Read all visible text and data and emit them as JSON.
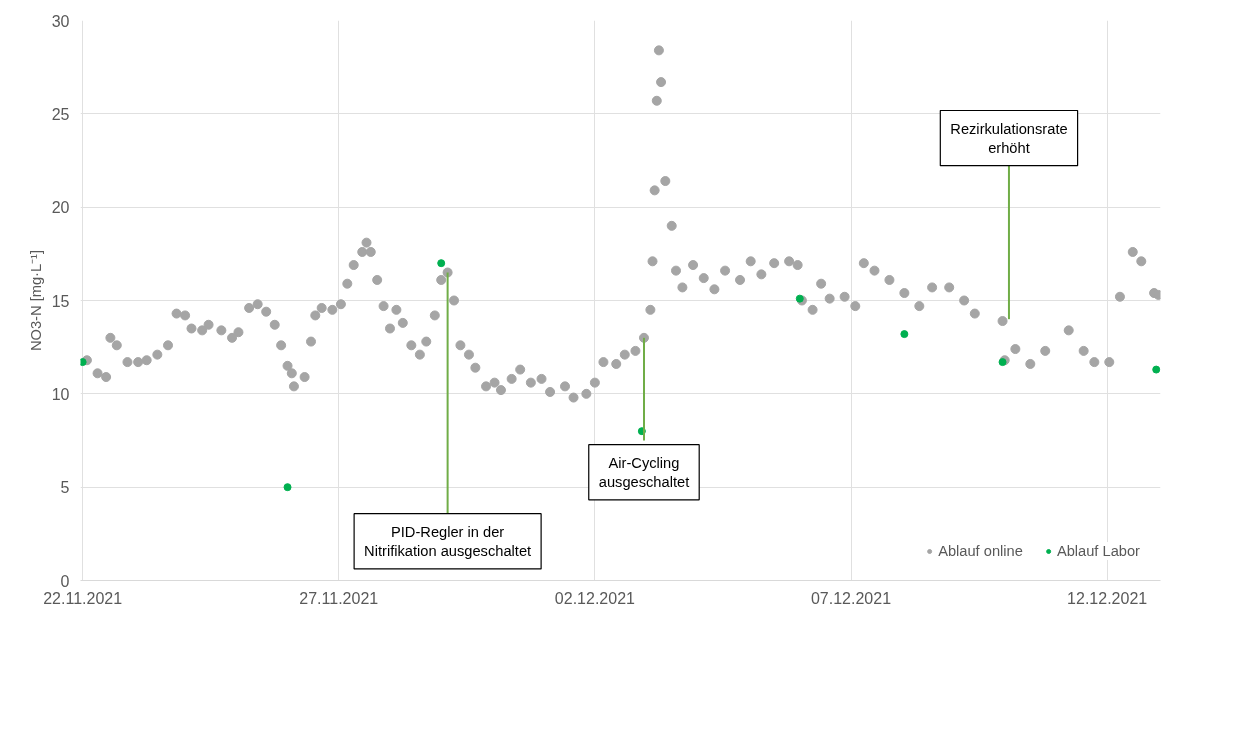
{
  "chart_data": {
    "type": "scatter",
    "ylabel": "NO3-N [mg·L⁻¹]",
    "xlim": [
      "2021-11-21T23:00",
      "2021-12-13T01:00"
    ],
    "xticks": [
      {
        "value": "2021-11-22",
        "label": "22.11.2021"
      },
      {
        "value": "2021-11-27",
        "label": "27.11.2021"
      },
      {
        "value": "2021-12-02",
        "label": "02.12.2021"
      },
      {
        "value": "2021-12-07",
        "label": "07.12.2021"
      },
      {
        "value": "2021-12-12",
        "label": "12.12.2021"
      }
    ],
    "ylim": [
      0,
      30
    ],
    "yticks": [
      0,
      5,
      10,
      15,
      20,
      25,
      30
    ],
    "grid": true,
    "legend": "bottom right",
    "marker": "circle",
    "series": [
      {
        "name": "Ablauf online",
        "color": "#a5a5a5",
        "x": [
          "2021-11-22T02:00",
          "2021-11-22T07:00",
          "2021-11-22T11:00",
          "2021-11-22T13:00",
          "2021-11-22T16:00",
          "2021-11-22T21:00",
          "2021-11-23T02:00",
          "2021-11-23T06:00",
          "2021-11-23T11:00",
          "2021-11-23T16:00",
          "2021-11-23T20:00",
          "2021-11-24T00:00",
          "2021-11-24T03:00",
          "2021-11-24T08:00",
          "2021-11-24T11:00",
          "2021-11-24T17:00",
          "2021-11-24T22:00",
          "2021-11-25T01:00",
          "2021-11-25T06:00",
          "2021-11-25T10:00",
          "2021-11-25T14:00",
          "2021-11-25T18:00",
          "2021-11-25T21:00",
          "2021-11-26T00:00",
          "2021-11-26T02:00",
          "2021-11-26T03:00",
          "2021-11-26T08:00",
          "2021-11-26T11:00",
          "2021-11-26T13:00",
          "2021-11-26T16:00",
          "2021-11-26T21:00",
          "2021-11-27T01:00",
          "2021-11-27T04:00",
          "2021-11-27T07:00",
          "2021-11-27T11:00",
          "2021-11-27T13:00",
          "2021-11-27T15:00",
          "2021-11-27T18:00",
          "2021-11-27T21:00",
          "2021-11-28T00:00",
          "2021-11-28T03:00",
          "2021-11-28T06:00",
          "2021-11-28T10:00",
          "2021-11-28T14:00",
          "2021-11-28T17:00",
          "2021-11-28T21:00",
          "2021-11-29T00:00",
          "2021-11-29T03:00",
          "2021-11-29T06:00",
          "2021-11-29T09:00",
          "2021-11-29T13:00",
          "2021-11-29T16:00",
          "2021-11-29T21:00",
          "2021-11-30T01:00",
          "2021-11-30T04:00",
          "2021-11-30T09:00",
          "2021-11-30T13:00",
          "2021-11-30T18:00",
          "2021-11-30T23:00",
          "2021-12-01T03:00",
          "2021-12-01T10:00",
          "2021-12-01T14:00",
          "2021-12-01T20:00",
          "2021-12-02T00:00",
          "2021-12-02T04:00",
          "2021-12-02T10:00",
          "2021-12-02T14:00",
          "2021-12-02T19:00",
          "2021-12-02T23:00",
          "2021-12-03T02:00",
          "2021-12-03T03:00",
          "2021-12-03T04:00",
          "2021-12-03T05:00",
          "2021-12-03T06:00",
          "2021-12-03T07:00",
          "2021-12-03T09:00",
          "2021-12-03T12:00",
          "2021-12-03T14:00",
          "2021-12-03T17:00",
          "2021-12-03T22:00",
          "2021-12-04T03:00",
          "2021-12-04T08:00",
          "2021-12-04T13:00",
          "2021-12-04T20:00",
          "2021-12-05T01:00",
          "2021-12-05T06:00",
          "2021-12-05T12:00",
          "2021-12-05T19:00",
          "2021-12-05T23:00",
          "2021-12-06T01:00",
          "2021-12-06T06:00",
          "2021-12-06T10:00",
          "2021-12-06T14:00",
          "2021-12-06T21:00",
          "2021-12-07T02:00",
          "2021-12-07T06:00",
          "2021-12-07T11:00",
          "2021-12-07T18:00",
          "2021-12-08T01:00",
          "2021-12-08T08:00",
          "2021-12-08T14:00",
          "2021-12-08T22:00",
          "2021-12-09T05:00",
          "2021-12-09T10:00",
          "2021-12-09T23:00",
          "2021-12-10T00:00",
          "2021-12-10T05:00",
          "2021-12-10T12:00",
          "2021-12-10T19:00",
          "2021-12-11T06:00",
          "2021-12-11T13:00",
          "2021-12-11T18:00",
          "2021-12-12T01:00",
          "2021-12-12T06:00",
          "2021-12-12T12:00",
          "2021-12-12T16:00",
          "2021-12-12T22:00",
          "2021-12-13T00:00"
        ],
        "values": [
          11.8,
          11.1,
          10.9,
          13.0,
          12.6,
          11.7,
          11.7,
          11.8,
          12.1,
          12.6,
          14.3,
          14.2,
          13.5,
          13.4,
          13.7,
          13.4,
          13.0,
          13.3,
          14.6,
          14.8,
          14.4,
          13.7,
          12.6,
          11.5,
          11.1,
          10.4,
          10.9,
          12.8,
          14.2,
          14.6,
          14.5,
          14.8,
          15.9,
          16.9,
          17.6,
          18.1,
          17.6,
          16.1,
          14.7,
          13.5,
          14.5,
          13.8,
          12.6,
          12.1,
          12.8,
          14.2,
          16.1,
          16.5,
          15.0,
          12.6,
          12.1,
          11.4,
          10.4,
          10.6,
          10.2,
          10.8,
          11.3,
          10.6,
          10.8,
          10.1,
          10.4,
          9.8,
          10.0,
          10.6,
          11.7,
          11.6,
          12.1,
          12.3,
          13.0,
          14.5,
          17.1,
          20.9,
          25.7,
          28.4,
          26.7,
          21.4,
          19.0,
          16.6,
          15.7,
          16.9,
          16.2,
          15.6,
          16.6,
          16.1,
          17.1,
          16.4,
          17.0,
          17.1,
          16.9,
          15.0,
          14.5,
          15.9,
          15.1,
          15.2,
          14.7,
          17.0,
          16.6,
          16.1,
          15.4,
          14.7,
          15.7,
          15.7,
          15.0,
          14.3,
          13.9,
          11.8,
          12.4,
          11.6,
          12.3,
          13.4,
          12.3,
          11.7,
          11.7,
          15.2,
          17.6,
          17.1,
          15.4,
          15.3
        ]
      },
      {
        "name": "Ablauf Labor",
        "color": "#00b050",
        "x": [
          "2021-11-22T00:00",
          "2021-11-26T00:00",
          "2021-11-29T00:00",
          "2021-12-02T22:00",
          "2021-12-06T00:00",
          "2021-12-08T01:00",
          "2021-12-09T23:00",
          "2021-12-12T23:00"
        ],
        "values": [
          11.7,
          5.0,
          17.0,
          8.0,
          15.1,
          13.2,
          11.7,
          11.3
        ]
      }
    ],
    "annotations": [
      {
        "text": "PID-Regler in der\nNitrifikation ausgeschaltet",
        "x": "2021-11-29T03:00",
        "y": 16.5
      },
      {
        "text": "Air-Cycling\nausgeschaltet",
        "x": "2021-12-02T23:00",
        "y": 13.0
      },
      {
        "text": "Rezirkulationsrate\nerhöht",
        "x": "2021-12-10T02:00",
        "y": 14.0
      }
    ]
  }
}
